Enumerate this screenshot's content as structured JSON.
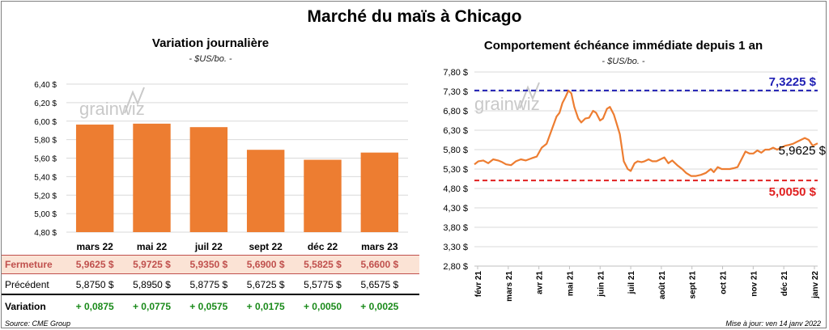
{
  "title": "Marché du maïs à Chicago",
  "left_panel": {
    "title": "Variation  journalière",
    "subtitle": "- $US/bo. -",
    "watermark": "grainwiz"
  },
  "right_panel": {
    "title": "Comportement  échéance immédiate depuis 1 an",
    "subtitle": "- $US/bo. -",
    "watermark": "grainwiz"
  },
  "table": {
    "row_labels": {
      "close": "Fermeture",
      "previous": "Précédent",
      "variation": "Variation"
    },
    "close": [
      "5,9625  $",
      "5,9725  $",
      "5,9350  $",
      "5,6900  $",
      "5,5825  $",
      "5,6600  $"
    ],
    "previous": [
      "5,8750  $",
      "5,8950  $",
      "5,8775  $",
      "5,6725  $",
      "5,5775  $",
      "5,6575  $"
    ],
    "variation": [
      "+ 0,0875",
      "+ 0,0775",
      "+ 0,0575",
      "+ 0,0175",
      "+ 0,0050",
      "+ 0,0025"
    ]
  },
  "footer": {
    "source": "Source: CME Group",
    "updated": "Mise à jour: ven 14 janv 2022"
  },
  "chart_data": [
    {
      "type": "bar",
      "title": "Variation  journalière",
      "subtitle": "- $US/bo. -",
      "categories": [
        "mars 22",
        "mai 22",
        "juil 22",
        "sept 22",
        "déc 22",
        "mars 23"
      ],
      "values": [
        5.9625,
        5.9725,
        5.935,
        5.69,
        5.5825,
        5.66
      ],
      "ylim": [
        4.8,
        6.4
      ],
      "yticks": [
        "6,40 $",
        "6,20 $",
        "6,00 $",
        "5,80 $",
        "5,60 $",
        "5,40 $",
        "5,20 $",
        "5,00 $",
        "4,80 $"
      ],
      "ytick_values": [
        6.4,
        6.2,
        6.0,
        5.8,
        5.6,
        5.4,
        5.2,
        5.0,
        4.8
      ],
      "bar_color": "#ed7d31",
      "grid": true
    },
    {
      "type": "line",
      "title": "Comportement  échéance immédiate depuis 1 an",
      "subtitle": "- $US/bo. -",
      "ylim": [
        2.8,
        7.8
      ],
      "yticks": [
        "7,80 $",
        "7,30 $",
        "6,80 $",
        "6,30 $",
        "5,80 $",
        "5,30 $",
        "4,80 $",
        "4,30 $",
        "3,80 $",
        "3,30 $",
        "2,80 $"
      ],
      "ytick_values": [
        7.8,
        7.3,
        6.8,
        6.3,
        5.8,
        5.3,
        4.8,
        4.3,
        3.8,
        3.3,
        2.8
      ],
      "xticks": [
        "févr 21",
        "mars 21",
        "avr 21",
        "mai 21",
        "juin 21",
        "juil 21",
        "août 21",
        "sept 21",
        "oct 21",
        "nov 21",
        "déc 21",
        "janv 22"
      ],
      "x_range": [
        "2021-02-01",
        "2022-01-14"
      ],
      "series": [
        {
          "color": "#ed7d31",
          "points": [
            [
              "2021-02-01",
              5.42
            ],
            [
              "2021-02-05",
              5.5
            ],
            [
              "2021-02-10",
              5.52
            ],
            [
              "2021-02-15",
              5.45
            ],
            [
              "2021-02-20",
              5.55
            ],
            [
              "2021-02-25",
              5.52
            ],
            [
              "2021-03-01",
              5.48
            ],
            [
              "2021-03-05",
              5.42
            ],
            [
              "2021-03-10",
              5.4
            ],
            [
              "2021-03-15",
              5.5
            ],
            [
              "2021-03-20",
              5.55
            ],
            [
              "2021-03-25",
              5.52
            ],
            [
              "2021-03-31",
              5.58
            ],
            [
              "2021-04-05",
              5.62
            ],
            [
              "2021-04-10",
              5.85
            ],
            [
              "2021-04-15",
              5.95
            ],
            [
              "2021-04-20",
              6.3
            ],
            [
              "2021-04-25",
              6.65
            ],
            [
              "2021-04-28",
              6.75
            ],
            [
              "2021-05-01",
              7.0
            ],
            [
              "2021-05-04",
              7.15
            ],
            [
              "2021-05-07",
              7.32
            ],
            [
              "2021-05-10",
              7.25
            ],
            [
              "2021-05-13",
              6.9
            ],
            [
              "2021-05-17",
              6.6
            ],
            [
              "2021-05-20",
              6.5
            ],
            [
              "2021-05-24",
              6.6
            ],
            [
              "2021-05-28",
              6.62
            ],
            [
              "2021-06-01",
              6.8
            ],
            [
              "2021-06-04",
              6.75
            ],
            [
              "2021-06-08",
              6.55
            ],
            [
              "2021-06-11",
              6.6
            ],
            [
              "2021-06-15",
              6.85
            ],
            [
              "2021-06-18",
              6.9
            ],
            [
              "2021-06-22",
              6.7
            ],
            [
              "2021-06-25",
              6.45
            ],
            [
              "2021-06-28",
              6.2
            ],
            [
              "2021-06-30",
              5.85
            ],
            [
              "2021-07-02",
              5.5
            ],
            [
              "2021-07-06",
              5.3
            ],
            [
              "2021-07-09",
              5.25
            ],
            [
              "2021-07-13",
              5.45
            ],
            [
              "2021-07-16",
              5.5
            ],
            [
              "2021-07-20",
              5.48
            ],
            [
              "2021-07-23",
              5.5
            ],
            [
              "2021-07-27",
              5.55
            ],
            [
              "2021-07-31",
              5.5
            ],
            [
              "2021-08-04",
              5.5
            ],
            [
              "2021-08-08",
              5.55
            ],
            [
              "2021-08-12",
              5.6
            ],
            [
              "2021-08-16",
              5.45
            ],
            [
              "2021-08-20",
              5.52
            ],
            [
              "2021-08-25",
              5.4
            ],
            [
              "2021-08-30",
              5.3
            ],
            [
              "2021-09-03",
              5.2
            ],
            [
              "2021-09-08",
              5.12
            ],
            [
              "2021-09-13",
              5.12
            ],
            [
              "2021-09-18",
              5.15
            ],
            [
              "2021-09-23",
              5.2
            ],
            [
              "2021-09-28",
              5.3
            ],
            [
              "2021-10-01",
              5.22
            ],
            [
              "2021-10-05",
              5.35
            ],
            [
              "2021-10-09",
              5.3
            ],
            [
              "2021-10-13",
              5.3
            ],
            [
              "2021-10-17",
              5.3
            ],
            [
              "2021-10-21",
              5.32
            ],
            [
              "2021-10-25",
              5.35
            ],
            [
              "2021-10-29",
              5.55
            ],
            [
              "2021-11-02",
              5.75
            ],
            [
              "2021-11-06",
              5.7
            ],
            [
              "2021-11-10",
              5.7
            ],
            [
              "2021-11-14",
              5.78
            ],
            [
              "2021-11-18",
              5.72
            ],
            [
              "2021-11-22",
              5.8
            ],
            [
              "2021-11-26",
              5.8
            ],
            [
              "2021-11-30",
              5.85
            ],
            [
              "2021-12-04",
              5.8
            ],
            [
              "2021-12-08",
              5.85
            ],
            [
              "2021-12-12",
              5.9
            ],
            [
              "2021-12-16",
              5.92
            ],
            [
              "2021-12-20",
              5.95
            ],
            [
              "2021-12-24",
              6.0
            ],
            [
              "2021-12-28",
              6.05
            ],
            [
              "2022-01-01",
              6.1
            ],
            [
              "2022-01-05",
              6.05
            ],
            [
              "2022-01-09",
              5.9
            ],
            [
              "2022-01-14",
              5.9625
            ]
          ]
        }
      ],
      "reference_lines": [
        {
          "value": 7.3225,
          "label": "7,3225 $",
          "color": "#1f1fb4",
          "style": "dashed"
        },
        {
          "value": 5.005,
          "label": "5,0050 $",
          "color": "#e02020",
          "style": "dashed"
        }
      ],
      "last_value_label": "5,9625 $",
      "grid": true
    }
  ]
}
